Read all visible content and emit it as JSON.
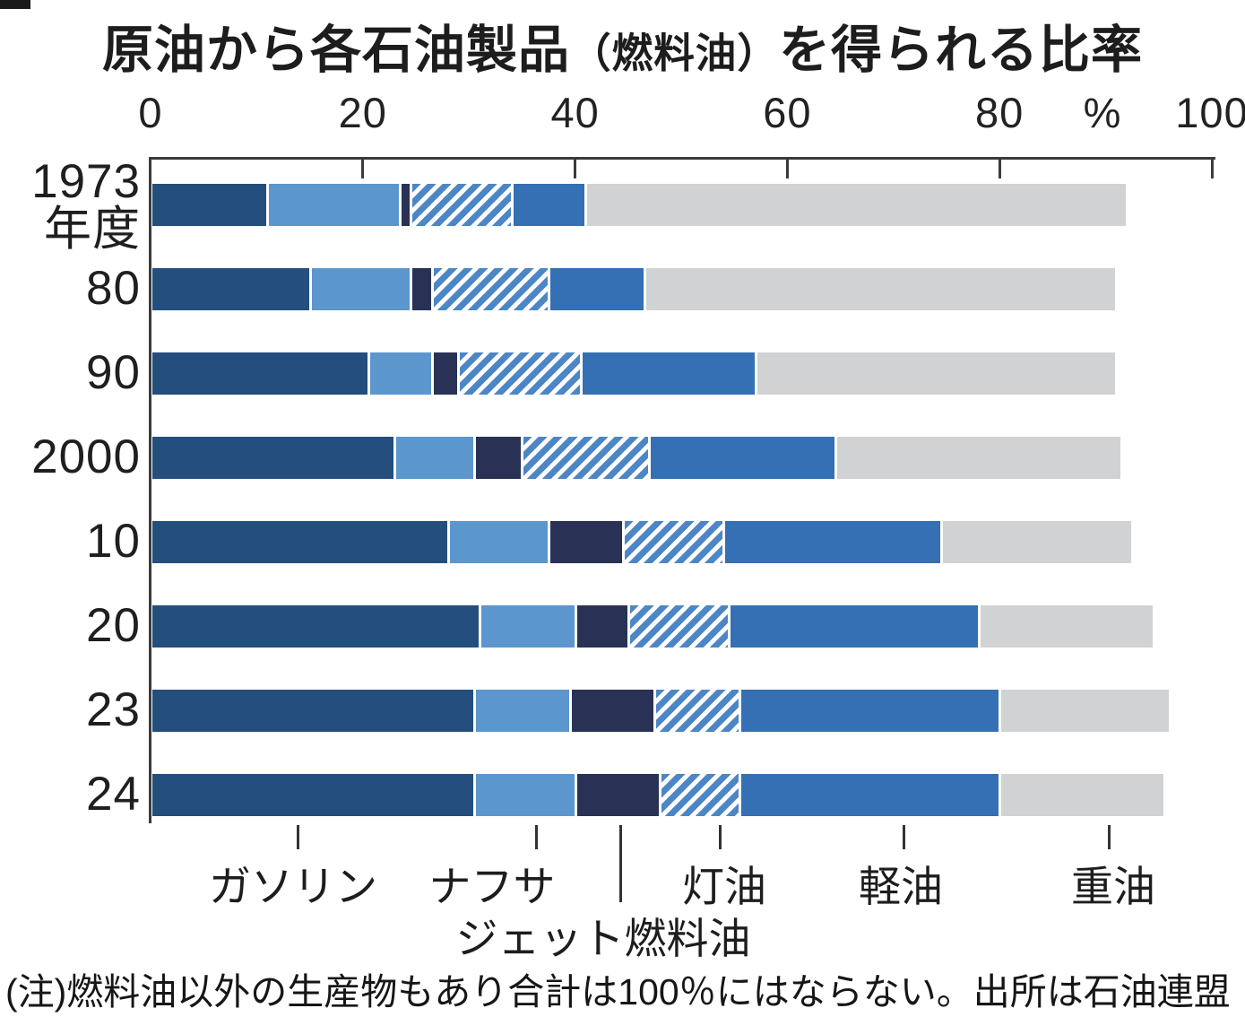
{
  "title": {
    "pre": "原油から各石油製品",
    "paren": "（燃料油）",
    "post": "を得られる比率"
  },
  "axis": {
    "percent_label": "%"
  },
  "note": "(注)燃料油以外の生産物もあり合計は100％にはならない。出所は石油連盟",
  "chart_data": {
    "type": "bar",
    "stacked": true,
    "orientation": "horizontal",
    "unit": "%",
    "xlim": [
      0,
      100
    ],
    "xticks": [
      0,
      20,
      40,
      60,
      80,
      100
    ],
    "grid": false,
    "legend_position": "bottom",
    "categories": [
      "1973\n年度",
      "80",
      "90",
      "2000",
      "10",
      "20",
      "23",
      "24"
    ],
    "series": [
      {
        "name": "ガソリン",
        "color": "#234e7d",
        "pattern": "solid",
        "values": [
          11,
          15,
          20.5,
          23,
          28,
          31,
          30.5,
          30.5
        ]
      },
      {
        "name": "ナフサ",
        "color": "#5b96cd",
        "pattern": "solid",
        "values": [
          12.5,
          9.5,
          6,
          7.5,
          9.5,
          9,
          9,
          9.5
        ]
      },
      {
        "name": "ジェット燃料油",
        "color": "#293255",
        "pattern": "solid",
        "values": [
          1,
          2,
          2.5,
          4.5,
          7,
          5,
          8,
          8
        ]
      },
      {
        "name": "灯油",
        "color": "#4d86c5",
        "pattern": "hatch",
        "values": [
          9.5,
          11,
          11.5,
          12,
          9.5,
          9.5,
          8,
          7.5
        ]
      },
      {
        "name": "軽油",
        "color": "#3470b3",
        "pattern": "solid",
        "values": [
          7,
          9,
          16.5,
          17.5,
          20.5,
          23.5,
          24.5,
          24.5
        ]
      },
      {
        "name": "重油",
        "color": "#d1d2d4",
        "pattern": "solid",
        "values": [
          51,
          44.5,
          34,
          27,
          18,
          16.5,
          16,
          15.5
        ]
      }
    ]
  }
}
